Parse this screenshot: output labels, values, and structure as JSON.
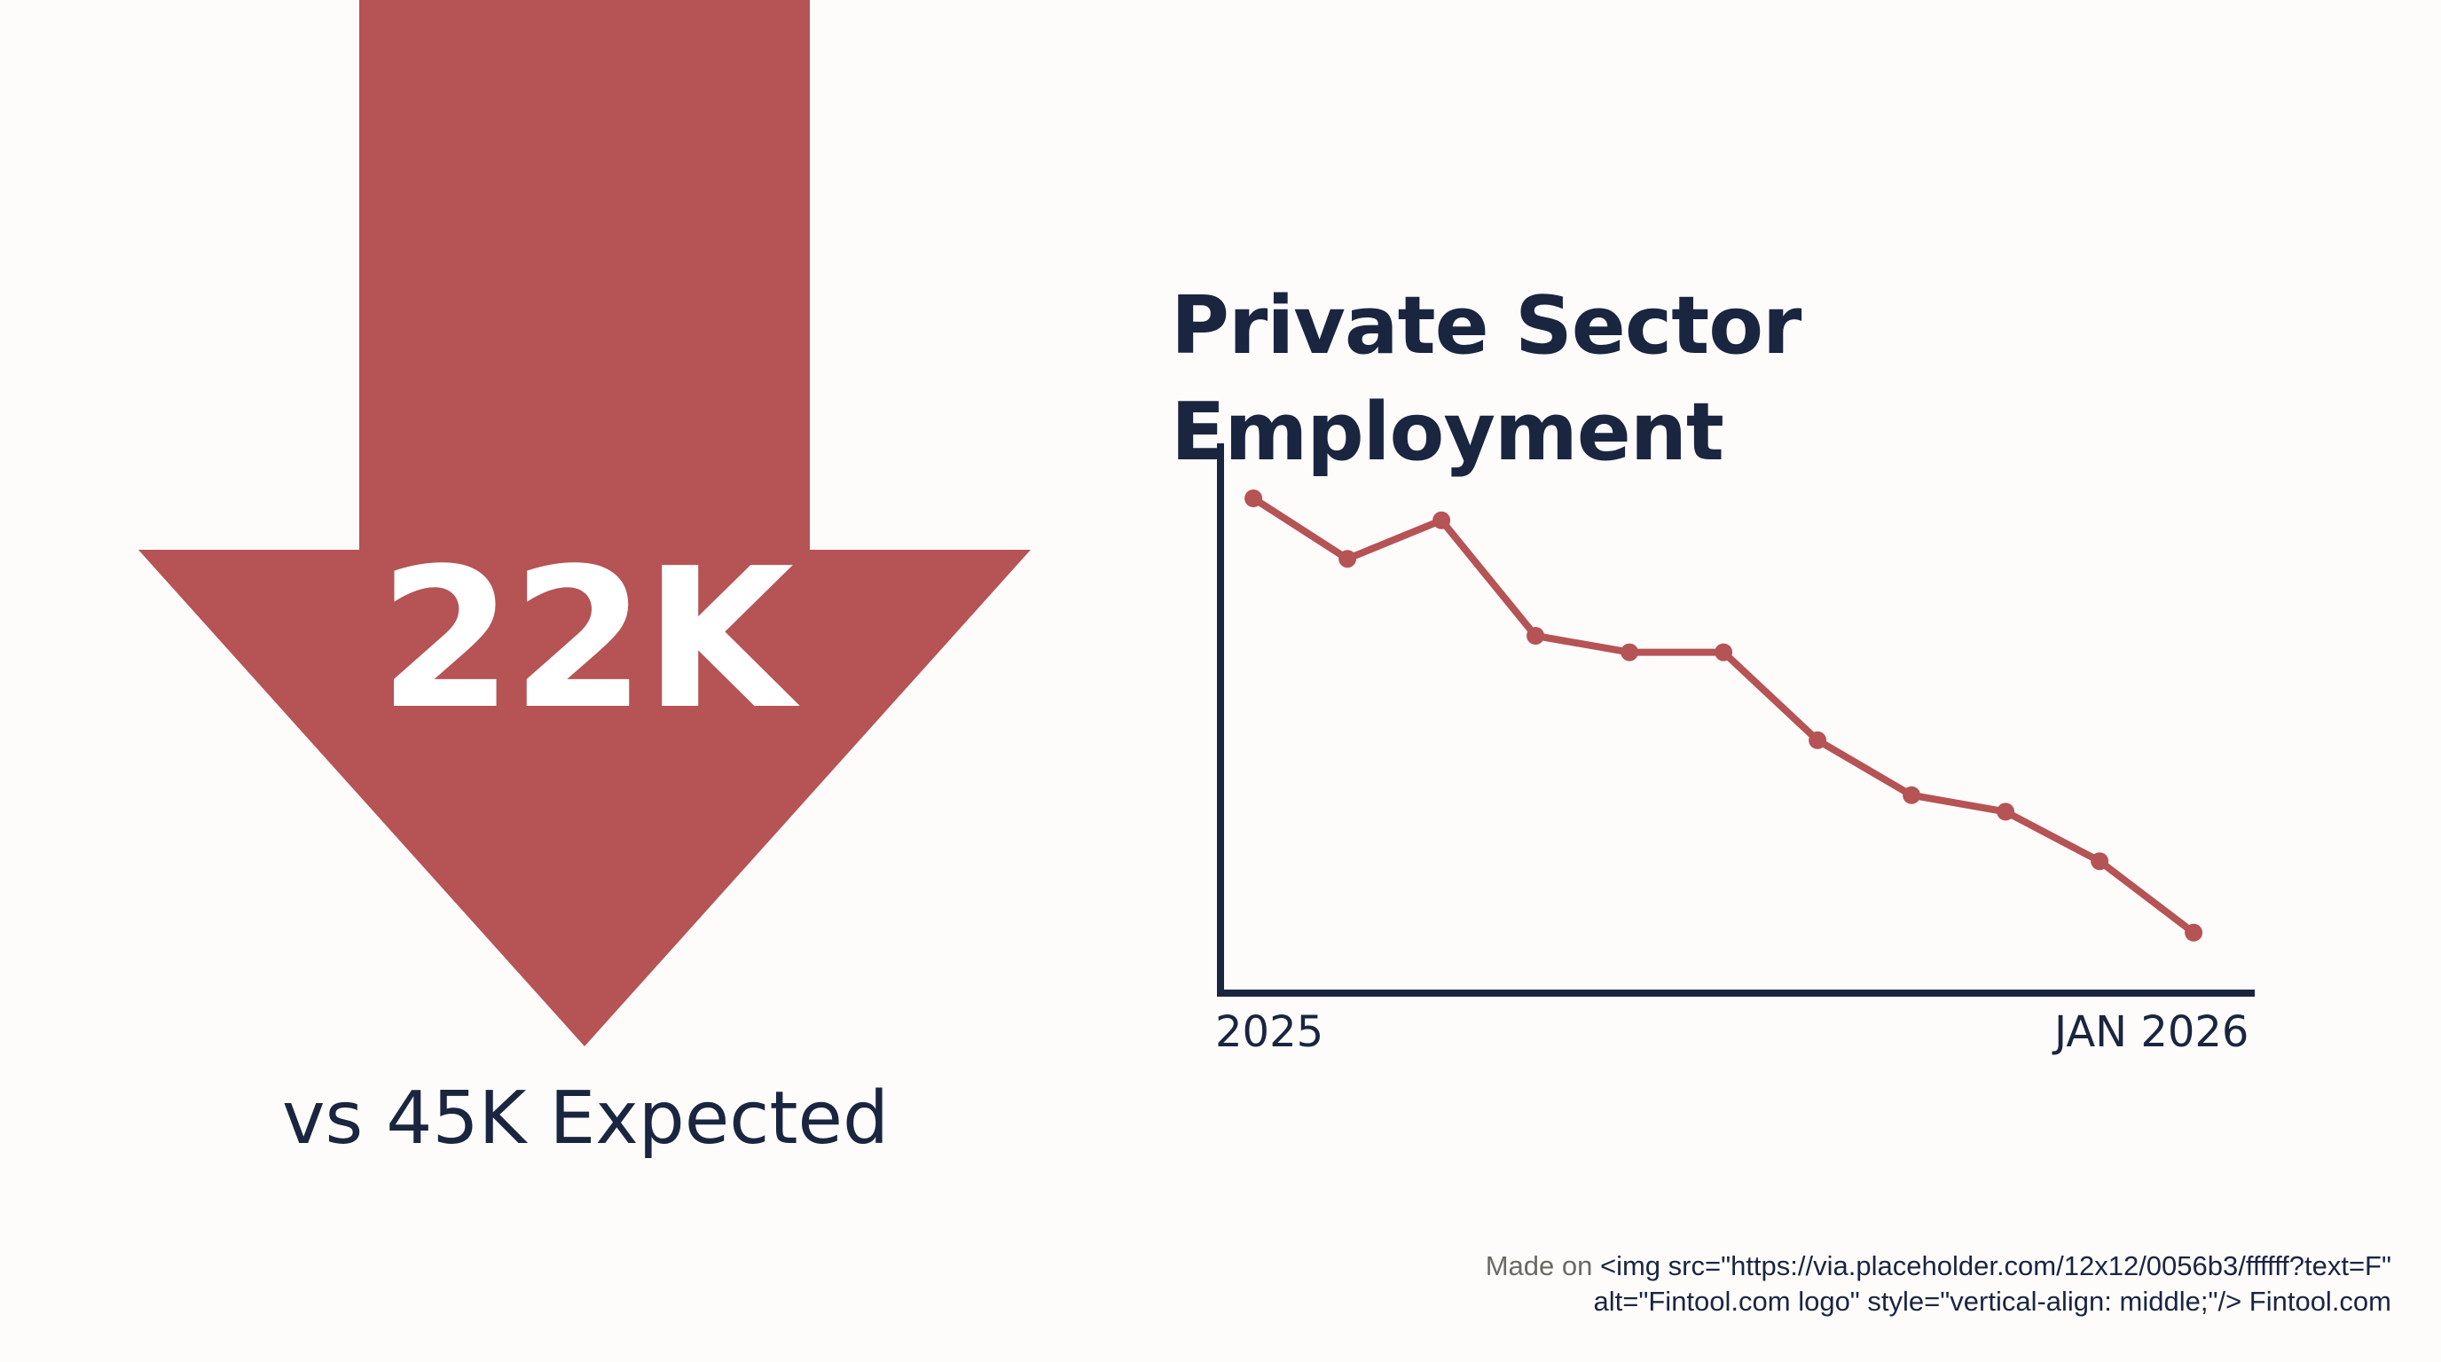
{
  "headline": {
    "value": "22K",
    "comparison": "vs 45K Expected",
    "arrow_color": "#b65355"
  },
  "chart_data": {
    "type": "line",
    "title": "Private Sector Employment",
    "x_labels": {
      "start": "2025",
      "end": "JAN 2026"
    },
    "x": [
      1,
      2,
      3,
      4,
      5,
      6,
      7,
      8,
      9,
      10,
      11
    ],
    "series": [
      {
        "name": "Private Sector Employment",
        "values": [
          90,
          79,
          86,
          65,
          62,
          62,
          46,
          36,
          33,
          24,
          11
        ],
        "color": "#b65355"
      }
    ],
    "ylim": [
      0,
      100
    ],
    "xlim": [
      0.65,
      11.65
    ],
    "grid": false,
    "axis_color": "#1a2540"
  },
  "footer": {
    "prefix": "Made on",
    "line1": "<img src=\"https://via.placeholder.com/12x12/0056b3/ffffff?text=F\"",
    "line2": "alt=\"Fintool.com logo\" style=\"vertical-align: middle;\"/> Fintool.com"
  }
}
